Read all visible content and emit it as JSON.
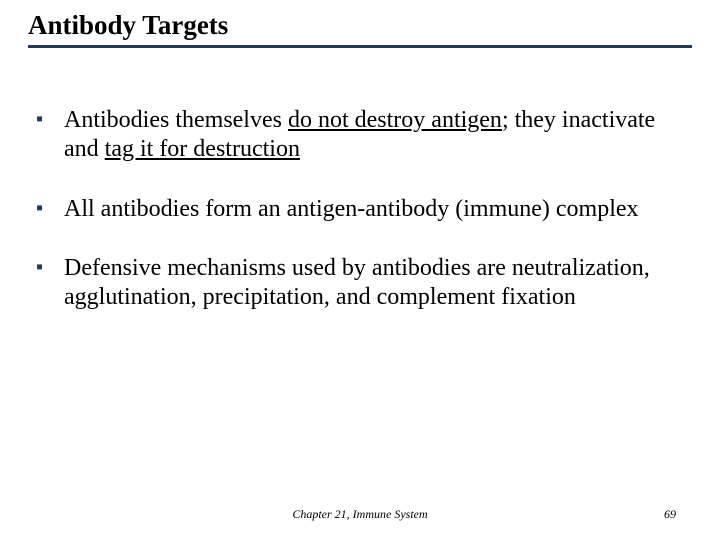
{
  "colors": {
    "title_underline": "#1f3864",
    "bullet_marker": "#1f3864",
    "text": "#000000",
    "background": "#ffffff"
  },
  "title": "Antibody Targets",
  "bullets": [
    {
      "pre": "Antibodies themselves ",
      "u1": "do not destroy antigen",
      "mid": "; they inactivate and ",
      "u2": "tag it for destruction",
      "post": ""
    },
    {
      "text": "All antibodies form an antigen-antibody (immune) complex"
    },
    {
      "text": "Defensive mechanisms used by antibodies are neutralization, agglutination, precipitation, and complement fixation"
    }
  ],
  "footer": "Chapter 21, Immune System",
  "page_number": "69"
}
